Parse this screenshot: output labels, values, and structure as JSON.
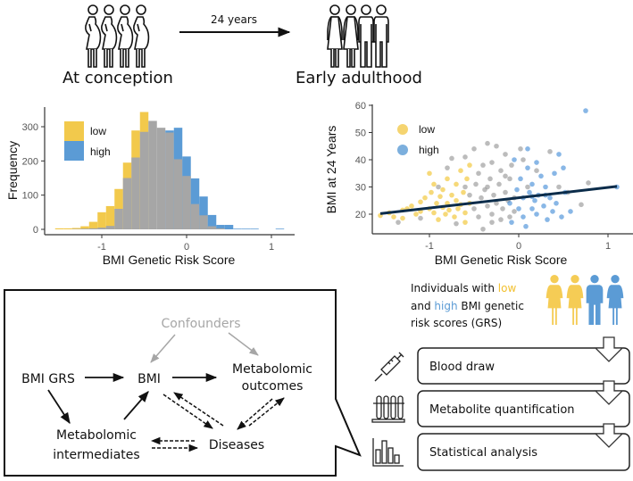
{
  "timeline": {
    "start_label": "At conception",
    "end_label": "Early adulthood",
    "interval_label": "24 years"
  },
  "colors": {
    "low": "#f2c94c",
    "high": "#5b9bd5",
    "all": "#a6a6a6",
    "low_point": "#f0c020",
    "high_point": "#3a87d6",
    "all_point": "#8f8f8f",
    "line": "#0b2c4a"
  },
  "chart_data": [
    {
      "type": "bar",
      "title": "",
      "xlabel": "BMI Genetic Risk Score",
      "ylabel": "Frequency",
      "xlim": [
        -1.6,
        1.2
      ],
      "ylim": [
        0,
        350
      ],
      "xticks": [
        "-1",
        "0",
        "1"
      ],
      "xtick_values": [
        -1,
        0,
        1
      ],
      "yticks": [
        "0",
        "100",
        "200",
        "300"
      ],
      "ytick_values": [
        0,
        100,
        200,
        300
      ],
      "bin_width": 0.1,
      "legend": {
        "placement": "top-left",
        "entries": [
          "low",
          "high"
        ]
      },
      "bins_fields": [
        "x_start",
        "total",
        "gray_overlap",
        "group"
      ],
      "bins": [
        [
          -1.55,
          3,
          0,
          "low"
        ],
        [
          -1.45,
          3,
          0,
          "low"
        ],
        [
          -1.35,
          4,
          1,
          "low"
        ],
        [
          -1.25,
          9,
          2,
          "low"
        ],
        [
          -1.15,
          22,
          3,
          "low"
        ],
        [
          -1.05,
          50,
          5,
          "low"
        ],
        [
          -0.95,
          68,
          10,
          "low"
        ],
        [
          -0.85,
          118,
          60,
          "low"
        ],
        [
          -0.75,
          195,
          150,
          "low"
        ],
        [
          -0.65,
          289,
          210,
          "low"
        ],
        [
          -0.55,
          343,
          285,
          "low"
        ],
        [
          -0.45,
          317,
          317,
          "none"
        ],
        [
          -0.35,
          297,
          297,
          "none"
        ],
        [
          -0.25,
          289,
          283,
          "high"
        ],
        [
          -0.15,
          297,
          205,
          "high"
        ],
        [
          -0.05,
          213,
          156,
          "high"
        ],
        [
          0.05,
          149,
          74,
          "high"
        ],
        [
          0.15,
          96,
          41,
          "high"
        ],
        [
          0.25,
          42,
          9,
          "high"
        ],
        [
          0.35,
          13,
          3,
          "high"
        ],
        [
          0.45,
          13,
          0,
          "high"
        ],
        [
          0.55,
          2,
          0,
          "high"
        ],
        [
          0.65,
          2,
          0,
          "high"
        ],
        [
          0.75,
          2,
          0,
          "high"
        ],
        [
          1.05,
          2,
          0,
          "high"
        ]
      ]
    },
    {
      "type": "scatter",
      "title": "",
      "xlabel": "BMI Genetic Risk Score",
      "ylabel": "BMI at 24 Years",
      "xlim": [
        -1.6,
        1.15
      ],
      "ylim": [
        13,
        60
      ],
      "xticks": [
        "-1",
        "0",
        "1"
      ],
      "xtick_values": [
        -1,
        0,
        1
      ],
      "yticks": [
        "20",
        "30",
        "40",
        "50",
        "60"
      ],
      "ytick_values": [
        20,
        30,
        40,
        50,
        60
      ],
      "legend": {
        "placement": "top-left",
        "entries": [
          "low",
          "high"
        ]
      },
      "regression_line": {
        "x": [
          -1.55,
          1.1
        ],
        "y": [
          20.2,
          30.2
        ]
      },
      "points_fields": [
        "x",
        "y",
        "group"
      ],
      "points": [
        [
          -1.35,
          17,
          "m"
        ],
        [
          -1.1,
          18.5,
          "m"
        ],
        [
          -0.9,
          30,
          "m"
        ],
        [
          -0.8,
          37,
          "m"
        ],
        [
          -0.75,
          40.5,
          "m"
        ],
        [
          -0.7,
          16.5,
          "m"
        ],
        [
          -0.6,
          41,
          "m"
        ],
        [
          -0.55,
          27,
          "m"
        ],
        [
          -0.5,
          44,
          "m"
        ],
        [
          -0.5,
          22,
          "m"
        ],
        [
          -0.48,
          31,
          "m"
        ],
        [
          -0.45,
          19,
          "m"
        ],
        [
          -0.45,
          35,
          "m"
        ],
        [
          -0.42,
          26,
          "m"
        ],
        [
          -0.4,
          14.5,
          "m"
        ],
        [
          -0.4,
          38,
          "m"
        ],
        [
          -0.38,
          29,
          "m"
        ],
        [
          -0.35,
          46,
          "m"
        ],
        [
          -0.35,
          23,
          "m"
        ],
        [
          -0.32,
          33,
          "m"
        ],
        [
          -0.3,
          20,
          "m"
        ],
        [
          -0.3,
          39,
          "m"
        ],
        [
          -0.28,
          27,
          "m"
        ],
        [
          -0.25,
          45,
          "m"
        ],
        [
          -0.25,
          24,
          "m"
        ],
        [
          -0.22,
          31,
          "m"
        ],
        [
          -0.2,
          18,
          "m"
        ],
        [
          -0.2,
          36,
          "m"
        ],
        [
          -0.18,
          22,
          "m"
        ],
        [
          -0.15,
          42,
          "m"
        ],
        [
          -0.15,
          28,
          "m"
        ],
        [
          -0.12,
          25,
          "m"
        ],
        [
          -0.1,
          33,
          "m"
        ],
        [
          -0.1,
          19,
          "m"
        ],
        [
          -0.08,
          38,
          "m"
        ],
        [
          -0.05,
          21,
          "m"
        ],
        [
          0.02,
          44,
          "m"
        ],
        [
          0.05,
          40,
          "m"
        ],
        [
          0.1,
          30,
          "m"
        ],
        [
          0.2,
          36,
          "m"
        ],
        [
          0.35,
          43,
          "m"
        ],
        [
          0.45,
          30,
          "m"
        ],
        [
          0.55,
          28,
          "m"
        ],
        [
          0.7,
          23.5,
          "m"
        ],
        [
          0.78,
          31.5,
          "m"
        ],
        [
          -0.6,
          30,
          "m"
        ],
        [
          -0.3,
          17,
          "m"
        ],
        [
          -0.05,
          26,
          "m"
        ],
        [
          -0.35,
          30,
          "m"
        ],
        [
          -0.15,
          34,
          "m"
        ],
        [
          -1.55,
          19.5,
          "l"
        ],
        [
          -1.45,
          20.5,
          "l"
        ],
        [
          -1.4,
          19,
          "l"
        ],
        [
          -1.3,
          21.5,
          "l"
        ],
        [
          -1.3,
          18.5,
          "l"
        ],
        [
          -1.25,
          22,
          "l"
        ],
        [
          -1.2,
          23,
          "l"
        ],
        [
          -1.15,
          20,
          "l"
        ],
        [
          -1.1,
          24.5,
          "l"
        ],
        [
          -1.1,
          21,
          "l"
        ],
        [
          -1.05,
          26,
          "l"
        ],
        [
          -1.0,
          35,
          "l"
        ],
        [
          -1.0,
          22,
          "l"
        ],
        [
          -0.98,
          28,
          "l"
        ],
        [
          -0.95,
          31,
          "l"
        ],
        [
          -0.95,
          20.5,
          "l"
        ],
        [
          -0.92,
          24,
          "l"
        ],
        [
          -0.9,
          18,
          "l"
        ],
        [
          -0.88,
          26.5,
          "l"
        ],
        [
          -0.85,
          22.5,
          "l"
        ],
        [
          -0.85,
          29,
          "l"
        ],
        [
          -0.82,
          20,
          "l"
        ],
        [
          -0.8,
          33,
          "l"
        ],
        [
          -0.8,
          24,
          "l"
        ],
        [
          -0.78,
          21.5,
          "l"
        ],
        [
          -0.75,
          27,
          "l"
        ],
        [
          -0.72,
          19,
          "l"
        ],
        [
          -0.7,
          25,
          "l"
        ],
        [
          -0.7,
          31,
          "l"
        ],
        [
          -0.68,
          22,
          "l"
        ],
        [
          -0.65,
          36,
          "l"
        ],
        [
          -0.65,
          23.5,
          "l"
        ],
        [
          -0.62,
          28,
          "l"
        ],
        [
          -0.6,
          20.5,
          "l"
        ],
        [
          -0.6,
          17,
          "l"
        ],
        [
          -0.58,
          33,
          "l"
        ],
        [
          -0.55,
          24,
          "l"
        ],
        [
          -0.55,
          38,
          "l"
        ],
        [
          -0.1,
          24,
          "h"
        ],
        [
          -0.08,
          17,
          "h"
        ],
        [
          -0.05,
          40,
          "h"
        ],
        [
          -0.02,
          29,
          "h"
        ],
        [
          0.0,
          22,
          "h"
        ],
        [
          0.02,
          33,
          "h"
        ],
        [
          0.05,
          26,
          "h"
        ],
        [
          0.05,
          19,
          "h"
        ],
        [
          0.08,
          15.5,
          "h"
        ],
        [
          0.1,
          44,
          "h"
        ],
        [
          0.1,
          37,
          "h"
        ],
        [
          0.12,
          28,
          "h"
        ],
        [
          0.15,
          22,
          "h"
        ],
        [
          0.15,
          31,
          "h"
        ],
        [
          0.18,
          25,
          "h"
        ],
        [
          0.2,
          39,
          "h"
        ],
        [
          0.2,
          20,
          "h"
        ],
        [
          0.22,
          27,
          "h"
        ],
        [
          0.25,
          34,
          "h"
        ],
        [
          0.28,
          23,
          "h"
        ],
        [
          0.3,
          30,
          "h"
        ],
        [
          0.32,
          18,
          "h"
        ],
        [
          0.35,
          26,
          "h"
        ],
        [
          0.38,
          21,
          "h"
        ],
        [
          0.4,
          35,
          "h"
        ],
        [
          0.42,
          24,
          "h"
        ],
        [
          0.45,
          42,
          "h"
        ],
        [
          0.48,
          19,
          "h"
        ],
        [
          0.5,
          37,
          "h"
        ],
        [
          0.52,
          28,
          "h"
        ],
        [
          0.58,
          21,
          "h"
        ],
        [
          0.75,
          58,
          "h"
        ],
        [
          1.1,
          30,
          "h"
        ],
        [
          0.3,
          27,
          "h"
        ],
        [
          0.15,
          26.5,
          "h"
        ]
      ]
    }
  ],
  "dag": {
    "confounders": "Confounders",
    "bmi_grs": "BMI GRS",
    "bmi": "BMI",
    "outcomes_1": "Metabolomic",
    "outcomes_2": "outcomes",
    "intermediates_1": "Metabolomic",
    "intermediates_2": "intermediates",
    "diseases": "Diseases"
  },
  "workflow": {
    "intro_1": "Individuals with ",
    "intro_low": "low",
    "intro_2": "and ",
    "intro_high": "high",
    "intro_3": " BMI genetic",
    "intro_4": "risk scores (GRS)",
    "steps": [
      {
        "label": "Blood draw",
        "icon": "syringe-icon"
      },
      {
        "label": "Metabolite quantification",
        "icon": "test-tubes-icon"
      },
      {
        "label": "Statistical analysis",
        "icon": "bar-chart-icon"
      }
    ]
  }
}
